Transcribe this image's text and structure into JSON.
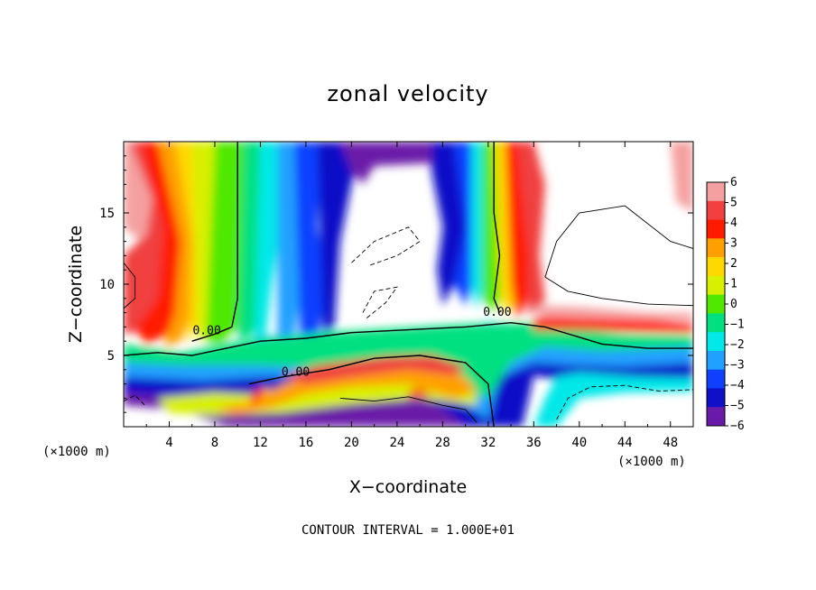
{
  "chart_data": {
    "type": "heatmap",
    "title": "zonal velocity",
    "xlabel": "X−coordinate",
    "ylabel": "Z−coordinate",
    "x_unit": "(×1000 m)",
    "z_unit": "(×1000 m)",
    "xlim": [
      0,
      50
    ],
    "ylim": [
      0,
      20
    ],
    "x_ticks": [
      4,
      8,
      12,
      16,
      20,
      24,
      28,
      32,
      36,
      40,
      44,
      48
    ],
    "y_ticks": [
      5,
      10,
      15
    ],
    "footer": "CONTOUR INTERVAL = 1.000E+01",
    "colorbar": {
      "levels": [
        "6",
        "5",
        "4",
        "3",
        "2",
        "1",
        "0",
        "−1",
        "−2",
        "−3",
        "−4",
        "−5",
        "−6"
      ],
      "colors": [
        "#f4a0a0",
        "#f04040",
        "#ff1a00",
        "#ffa000",
        "#ffd800",
        "#d8f000",
        "#50e800",
        "#00e080",
        "#00e8e8",
        "#20a0ff",
        "#1040ff",
        "#1010c8",
        "#6a1aa8"
      ]
    },
    "contour_labels": [
      {
        "text": "0.00",
        "x": 7.3,
        "z": 6.8
      },
      {
        "text": "0.00",
        "x": 15.1,
        "z": 3.9
      },
      {
        "text": "0.00",
        "x": 32.8,
        "z": 8.1
      }
    ]
  }
}
